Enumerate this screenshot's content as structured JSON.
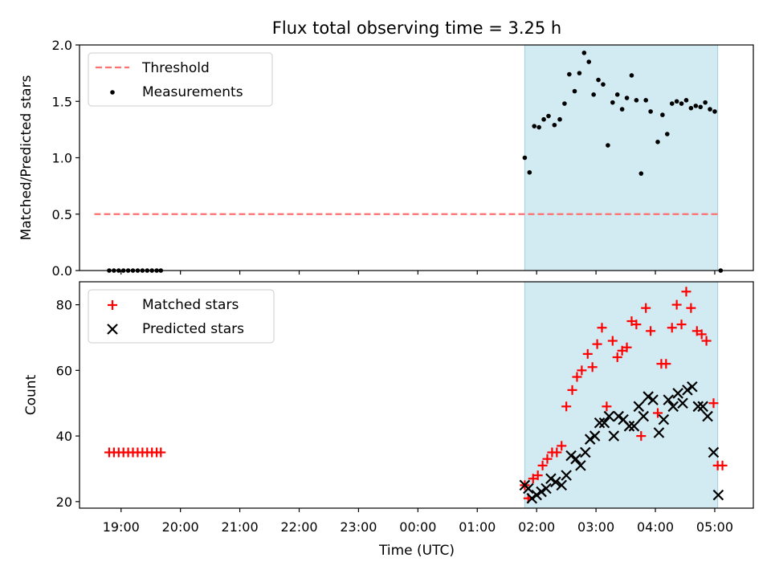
{
  "chart_data": {
    "type": "scatter",
    "title": "Flux total observing time = 3.25 h",
    "shade_color": "#add8e6",
    "x_tick_labels": [
      "19:00",
      "20:00",
      "21:00",
      "22:00",
      "23:00",
      "00:00",
      "01:00",
      "02:00",
      "03:00",
      "04:00",
      "05:00"
    ],
    "xlabel": "Time (UTC)",
    "xlim": [
      18.3,
      29.65
    ],
    "shaded_interval": [
      25.8,
      29.05
    ],
    "top": {
      "ylabel": "Matched/Predicted stars",
      "ylim": [
        0,
        2.0
      ],
      "yticks": [
        "0.0",
        "0.5",
        "1.0",
        "1.5",
        "2.0"
      ],
      "legend": {
        "location": "top-left",
        "entries": [
          "Threshold",
          "Measurements"
        ]
      },
      "threshold": {
        "name": "Threshold",
        "value": 0.5,
        "x_range": [
          18.55,
          29.05
        ],
        "color": "#ff7070"
      },
      "measurements": {
        "name": "Measurements",
        "color": "#000000",
        "points": [
          [
            18.8,
            0
          ],
          [
            18.88,
            0
          ],
          [
            18.96,
            0
          ],
          [
            19.04,
            0
          ],
          [
            19.12,
            0
          ],
          [
            19.2,
            0
          ],
          [
            19.28,
            0
          ],
          [
            19.36,
            0
          ],
          [
            19.44,
            0
          ],
          [
            19.52,
            0
          ],
          [
            19.6,
            0
          ],
          [
            19.67,
            0
          ],
          [
            25.8,
            1.0
          ],
          [
            25.88,
            0.87
          ],
          [
            25.96,
            1.28
          ],
          [
            26.04,
            1.27
          ],
          [
            26.12,
            1.34
          ],
          [
            26.2,
            1.37
          ],
          [
            26.3,
            1.29
          ],
          [
            26.39,
            1.34
          ],
          [
            26.47,
            1.48
          ],
          [
            26.55,
            1.74
          ],
          [
            26.64,
            1.59
          ],
          [
            26.72,
            1.75
          ],
          [
            26.8,
            1.93
          ],
          [
            26.88,
            1.85
          ],
          [
            26.96,
            1.56
          ],
          [
            27.04,
            1.69
          ],
          [
            27.12,
            1.65
          ],
          [
            27.2,
            1.11
          ],
          [
            27.28,
            1.49
          ],
          [
            27.36,
            1.56
          ],
          [
            27.44,
            1.43
          ],
          [
            27.52,
            1.53
          ],
          [
            27.6,
            1.73
          ],
          [
            27.68,
            1.51
          ],
          [
            27.76,
            0.86
          ],
          [
            27.84,
            1.51
          ],
          [
            27.92,
            1.41
          ],
          [
            28.04,
            1.14
          ],
          [
            28.12,
            1.38
          ],
          [
            28.2,
            1.21
          ],
          [
            28.28,
            1.48
          ],
          [
            28.36,
            1.5
          ],
          [
            28.44,
            1.48
          ],
          [
            28.52,
            1.51
          ],
          [
            28.6,
            1.44
          ],
          [
            28.68,
            1.46
          ],
          [
            28.76,
            1.45
          ],
          [
            28.84,
            1.49
          ],
          [
            28.92,
            1.43
          ],
          [
            29.0,
            1.41
          ],
          [
            29.1,
            0
          ]
        ]
      }
    },
    "bottom": {
      "ylabel": "Count",
      "ylim": [
        18,
        87
      ],
      "yticks": [
        "20",
        "40",
        "60",
        "80"
      ],
      "legend": {
        "location": "top-left",
        "entries": [
          "Matched stars",
          "Predicted stars"
        ]
      },
      "series": [
        {
          "name": "Matched stars",
          "marker": "+",
          "color": "#ff0000",
          "points": [
            [
              18.8,
              35
            ],
            [
              18.88,
              35
            ],
            [
              18.96,
              35
            ],
            [
              19.04,
              35
            ],
            [
              19.12,
              35
            ],
            [
              19.2,
              35
            ],
            [
              19.28,
              35
            ],
            [
              19.36,
              35
            ],
            [
              19.44,
              35
            ],
            [
              19.52,
              35
            ],
            [
              19.6,
              35
            ],
            [
              19.67,
              35
            ],
            [
              25.8,
              25
            ],
            [
              25.86,
              21
            ],
            [
              25.94,
              27
            ],
            [
              26.02,
              28
            ],
            [
              26.1,
              31
            ],
            [
              26.18,
              33
            ],
            [
              26.26,
              35
            ],
            [
              26.34,
              35
            ],
            [
              26.42,
              37
            ],
            [
              26.5,
              49
            ],
            [
              26.6,
              54
            ],
            [
              26.68,
              58
            ],
            [
              26.76,
              60
            ],
            [
              26.86,
              65
            ],
            [
              26.94,
              61
            ],
            [
              27.02,
              68
            ],
            [
              27.1,
              73
            ],
            [
              27.18,
              49
            ],
            [
              27.28,
              69
            ],
            [
              27.36,
              64
            ],
            [
              27.44,
              66
            ],
            [
              27.52,
              67
            ],
            [
              27.6,
              75
            ],
            [
              27.68,
              74
            ],
            [
              27.76,
              40
            ],
            [
              27.84,
              79
            ],
            [
              27.92,
              72
            ],
            [
              28.04,
              47
            ],
            [
              28.1,
              62
            ],
            [
              28.18,
              62
            ],
            [
              28.28,
              73
            ],
            [
              28.36,
              80
            ],
            [
              28.44,
              74
            ],
            [
              28.52,
              84
            ],
            [
              28.6,
              79
            ],
            [
              28.7,
              72
            ],
            [
              28.78,
              71
            ],
            [
              28.86,
              69
            ],
            [
              28.98,
              50
            ],
            [
              29.05,
              31
            ],
            [
              29.13,
              31
            ]
          ]
        },
        {
          "name": "Predicted stars",
          "marker": "x",
          "color": "#000000",
          "points": [
            [
              25.8,
              25
            ],
            [
              25.86,
              24
            ],
            [
              25.92,
              21
            ],
            [
              26.0,
              22
            ],
            [
              26.08,
              23
            ],
            [
              26.16,
              24
            ],
            [
              26.24,
              27
            ],
            [
              26.32,
              26
            ],
            [
              26.42,
              25
            ],
            [
              26.5,
              28
            ],
            [
              26.58,
              34
            ],
            [
              26.66,
              33
            ],
            [
              26.74,
              31
            ],
            [
              26.82,
              35
            ],
            [
              26.9,
              39
            ],
            [
              26.98,
              40
            ],
            [
              27.06,
              44
            ],
            [
              27.14,
              44
            ],
            [
              27.22,
              46
            ],
            [
              27.3,
              40
            ],
            [
              27.38,
              46
            ],
            [
              27.46,
              45
            ],
            [
              27.56,
              43
            ],
            [
              27.64,
              43
            ],
            [
              27.72,
              49
            ],
            [
              27.8,
              46
            ],
            [
              27.88,
              52
            ],
            [
              27.96,
              51
            ],
            [
              28.06,
              41
            ],
            [
              28.14,
              45
            ],
            [
              28.22,
              51
            ],
            [
              28.3,
              49
            ],
            [
              28.38,
              53
            ],
            [
              28.46,
              50
            ],
            [
              28.54,
              54
            ],
            [
              28.62,
              55
            ],
            [
              28.72,
              49
            ],
            [
              28.8,
              49
            ],
            [
              28.88,
              46
            ],
            [
              28.98,
              35
            ],
            [
              29.06,
              22
            ]
          ]
        }
      ]
    }
  }
}
